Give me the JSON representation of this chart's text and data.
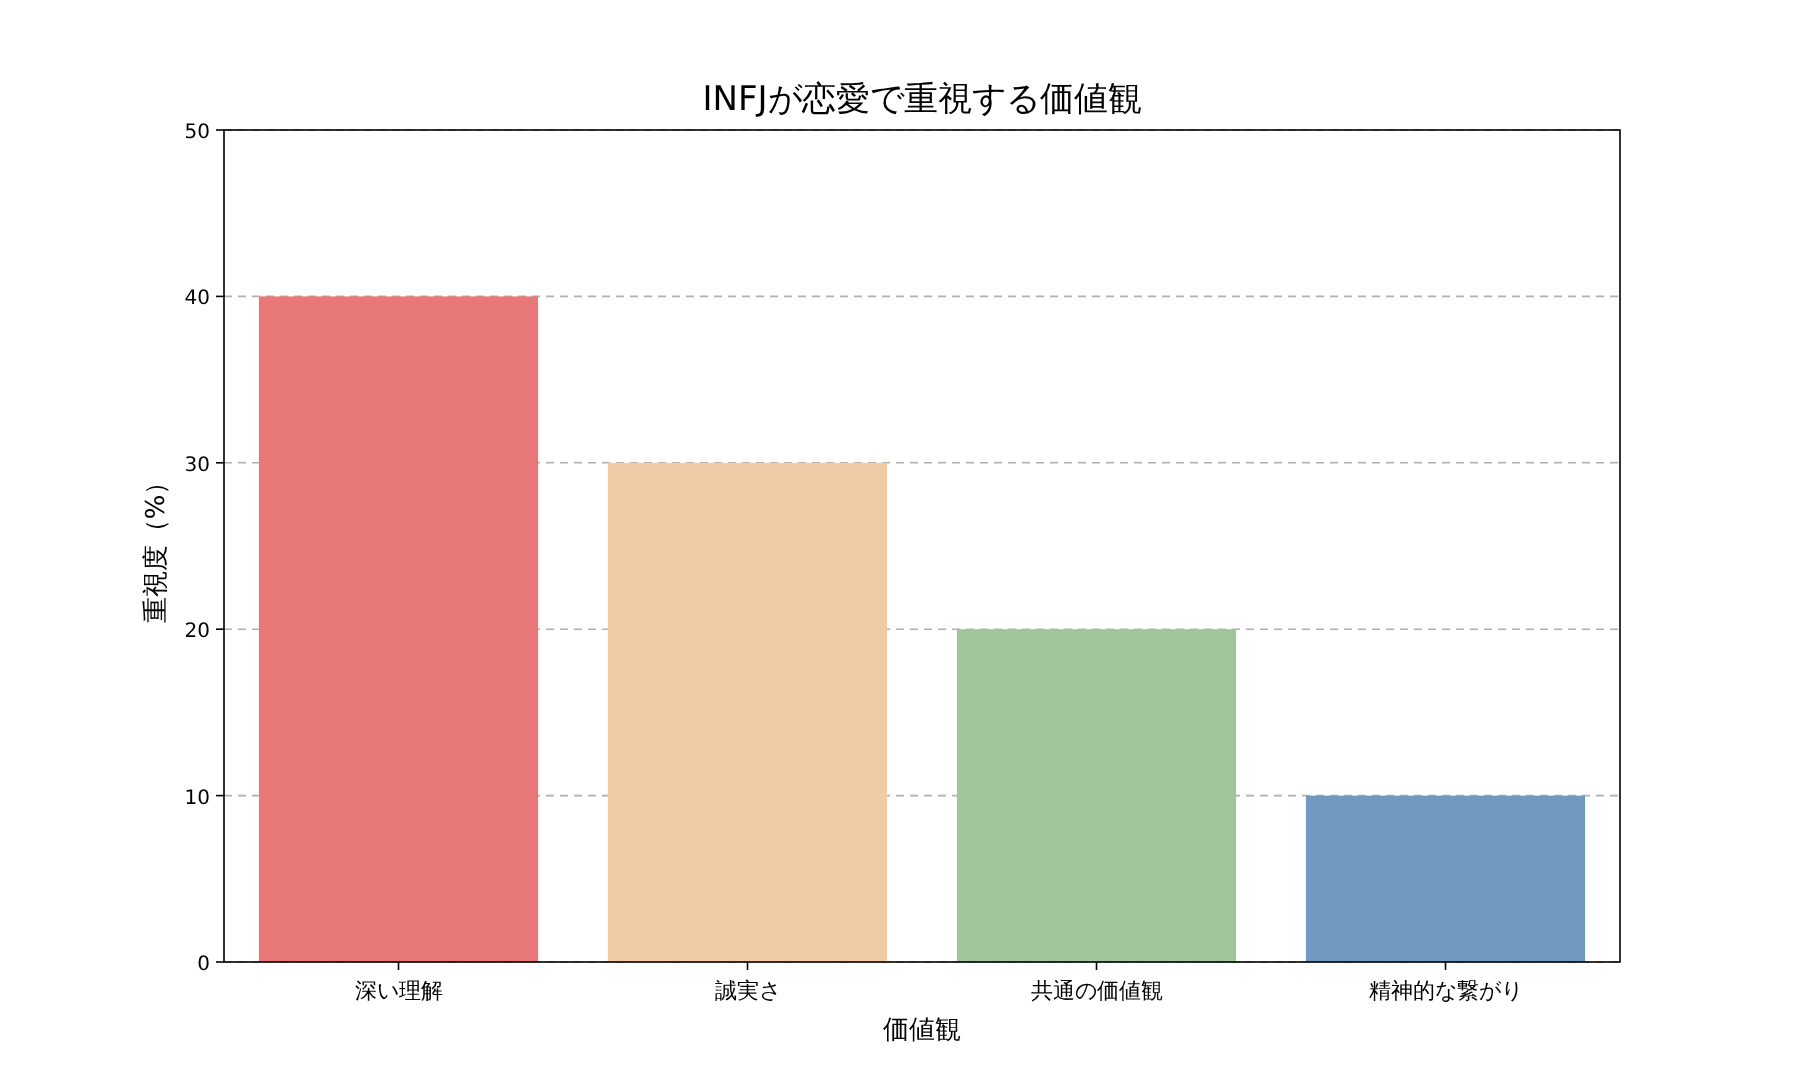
{
  "chart_data": {
    "type": "bar",
    "title": "INFJが恋愛で重視する価値観",
    "xlabel": "価値観",
    "ylabel": "重視度（%）",
    "categories": [
      "深い理解",
      "誠実さ",
      "共通の価値観",
      "精神的な繋がり"
    ],
    "values": [
      40,
      30,
      20,
      10
    ],
    "colors": [
      "#e87878",
      "#f1cba5",
      "#a0c59c",
      "#7198be"
    ],
    "ylim": [
      0,
      50
    ],
    "yticks": [
      0,
      10,
      20,
      30,
      40,
      50
    ],
    "grid": "y",
    "line_style": "dashed"
  }
}
